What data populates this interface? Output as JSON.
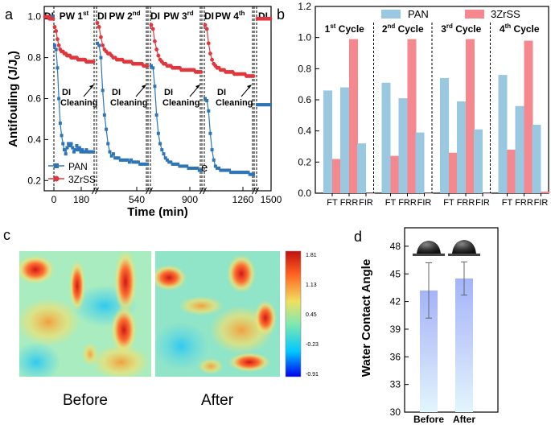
{
  "chart_data": [
    {
      "panel": "a",
      "type": "line",
      "ylabel_main": "Antifouling (J/J",
      "ylabel_sub": "0",
      "ylabel_close": ")",
      "xlabel": "Time (min)",
      "ylim": [
        0.15,
        1.05
      ],
      "yticks": [
        "0.2",
        "0.4",
        "0.6",
        "0.8",
        "1.0"
      ],
      "xticks": [
        "0",
        "180",
        "540",
        "900",
        "1260",
        "1500"
      ],
      "segment_labels": [
        "DI",
        "PW 1",
        "DI",
        "PW 2",
        "DI",
        "PW 3",
        "DI",
        "PW 4",
        "DI"
      ],
      "segment_sups": [
        "",
        "st",
        "",
        "nd",
        "",
        "rd",
        "",
        "th",
        ""
      ],
      "cleaning_label_1": "DI",
      "cleaning_label_2": "Cleaning",
      "stray_label": "e",
      "legend": [
        "PAN",
        "3ZrSS"
      ],
      "colors": {
        "PAN": "#2e75b6",
        "3ZrSS": "#e0363c"
      },
      "series": [
        {
          "name": "PAN",
          "segments": [
            {
              "x": [
                0,
                5,
                10,
                15,
                20,
                25,
                30,
                35,
                40,
                45,
                50,
                55,
                60,
                65
              ],
              "y": [
                1.0,
                1.0,
                1.0,
                1.0,
                1.0,
                1.0,
                1.0,
                1.0,
                1.0,
                1.0,
                1.0,
                1.0,
                1.0,
                1.0
              ]
            },
            {
              "x": [
                0,
                5,
                10,
                15,
                20,
                25,
                30,
                35,
                40,
                45,
                50,
                55,
                60,
                65,
                70,
                75,
                80,
                85,
                90,
                95,
                100,
                105,
                110,
                115,
                120,
                125,
                130,
                135,
                140
              ],
              "y": [
                0.86,
                0.84,
                0.75,
                0.6,
                0.48,
                0.42,
                0.38,
                0.35,
                0.33,
                0.36,
                0.38,
                0.37,
                0.38,
                0.36,
                0.34,
                0.35,
                0.37,
                0.35,
                0.36,
                0.34,
                0.35,
                0.34,
                0.34,
                0.35,
                0.34,
                0.34,
                0.34,
                0.34,
                0.34
              ]
            },
            {
              "x": [
                0,
                5,
                10,
                15,
                20,
                25,
                30,
                35,
                40,
                45,
                50,
                55,
                60,
                65,
                70,
                75,
                80,
                85,
                90,
                95,
                100,
                105,
                110,
                115,
                120,
                125,
                130,
                135,
                140
              ],
              "y": [
                0.87,
                0.86,
                0.8,
                0.64,
                0.52,
                0.45,
                0.38,
                0.34,
                0.32,
                0.33,
                0.31,
                0.31,
                0.31,
                0.3,
                0.3,
                0.3,
                0.3,
                0.3,
                0.29,
                0.3,
                0.29,
                0.29,
                0.29,
                0.29,
                0.28,
                0.28,
                0.28,
                0.28,
                0.28
              ]
            },
            {
              "x": [
                0,
                5,
                10,
                15,
                20,
                25,
                30,
                35,
                40,
                45,
                50,
                55,
                60,
                65,
                70,
                75,
                80,
                85,
                90,
                95,
                100,
                105,
                110,
                115,
                120,
                125,
                130,
                135,
                140
              ],
              "y": [
                0.76,
                0.75,
                0.66,
                0.52,
                0.43,
                0.38,
                0.35,
                0.33,
                0.31,
                0.3,
                0.29,
                0.29,
                0.28,
                0.28,
                0.28,
                0.28,
                0.27,
                0.27,
                0.27,
                0.27,
                0.27,
                0.26,
                0.26,
                0.26,
                0.26,
                0.26,
                0.26,
                0.25,
                0.25
              ]
            },
            {
              "x": [
                0,
                5,
                10,
                15,
                20,
                25,
                30,
                35,
                40,
                45,
                50,
                55,
                60,
                65,
                70,
                75,
                80,
                85,
                90,
                95,
                100,
                105,
                110,
                115,
                120,
                125,
                130,
                135,
                140
              ],
              "y": [
                0.6,
                0.59,
                0.54,
                0.43,
                0.35,
                0.3,
                0.27,
                0.26,
                0.26,
                0.25,
                0.25,
                0.25,
                0.25,
                0.25,
                0.25,
                0.24,
                0.24,
                0.24,
                0.24,
                0.24,
                0.24,
                0.24,
                0.24,
                0.24,
                0.24,
                0.24,
                0.23,
                0.23,
                0.23
              ]
            },
            {
              "x": [
                0,
                5,
                10,
                15,
                20,
                25,
                30,
                35
              ],
              "y": [
                0.57,
                0.57,
                0.57,
                0.57,
                0.57,
                0.57,
                0.57,
                0.57
              ]
            }
          ]
        },
        {
          "name": "3ZrSS",
          "segments": [
            {
              "x": [
                0,
                5,
                10,
                15,
                20,
                25,
                30,
                35,
                40,
                45,
                50,
                55,
                60,
                65
              ],
              "y": [
                1.0,
                1.0,
                1.0,
                1.0,
                1.0,
                1.0,
                1.0,
                0.99,
                0.99,
                0.99,
                0.99,
                0.99,
                0.99,
                0.99
              ]
            },
            {
              "x": [
                0,
                5,
                10,
                15,
                20,
                25,
                30,
                35,
                40,
                45,
                50,
                55,
                60,
                65,
                70,
                75,
                80,
                85,
                90,
                95,
                100,
                105,
                110,
                115,
                120,
                125,
                130,
                135,
                140
              ],
              "y": [
                0.95,
                0.93,
                0.89,
                0.86,
                0.84,
                0.83,
                0.83,
                0.82,
                0.82,
                0.81,
                0.81,
                0.81,
                0.8,
                0.8,
                0.8,
                0.8,
                0.8,
                0.79,
                0.79,
                0.79,
                0.79,
                0.79,
                0.79,
                0.78,
                0.78,
                0.78,
                0.78,
                0.78,
                0.78
              ]
            },
            {
              "x": [
                0,
                5,
                10,
                15,
                20,
                25,
                30,
                35,
                40,
                45,
                50,
                55,
                60,
                65,
                70,
                75,
                80,
                85,
                90,
                95,
                100,
                105,
                110,
                115,
                120,
                125,
                130,
                135,
                140
              ],
              "y": [
                0.97,
                0.95,
                0.9,
                0.86,
                0.84,
                0.83,
                0.82,
                0.82,
                0.81,
                0.8,
                0.8,
                0.79,
                0.79,
                0.79,
                0.79,
                0.78,
                0.78,
                0.78,
                0.78,
                0.78,
                0.77,
                0.77,
                0.77,
                0.77,
                0.77,
                0.77,
                0.76,
                0.76,
                0.76
              ]
            },
            {
              "x": [
                0,
                5,
                10,
                15,
                20,
                25,
                30,
                35,
                40,
                45,
                50,
                55,
                60,
                65,
                70,
                75,
                80,
                85,
                90,
                95,
                100,
                105,
                110,
                115,
                120,
                125,
                130,
                135,
                140
              ],
              "y": [
                0.96,
                0.94,
                0.88,
                0.84,
                0.81,
                0.79,
                0.78,
                0.77,
                0.77,
                0.76,
                0.76,
                0.76,
                0.75,
                0.75,
                0.75,
                0.75,
                0.75,
                0.74,
                0.74,
                0.74,
                0.74,
                0.74,
                0.74,
                0.74,
                0.74,
                0.73,
                0.73,
                0.73,
                0.73
              ]
            },
            {
              "x": [
                0,
                5,
                10,
                15,
                20,
                25,
                30,
                35,
                40,
                45,
                50,
                55,
                60,
                65,
                70,
                75,
                80,
                85,
                90,
                95,
                100,
                105,
                110,
                115,
                120,
                125,
                130,
                135,
                140
              ],
              "y": [
                0.96,
                0.94,
                0.87,
                0.82,
                0.79,
                0.77,
                0.76,
                0.75,
                0.75,
                0.74,
                0.74,
                0.74,
                0.73,
                0.73,
                0.73,
                0.73,
                0.73,
                0.72,
                0.72,
                0.72,
                0.72,
                0.72,
                0.72,
                0.72,
                0.71,
                0.71,
                0.71,
                0.71,
                0.71
              ]
            },
            {
              "x": [
                0,
                5,
                10,
                15,
                20,
                25,
                30,
                35
              ],
              "y": [
                0.99,
                0.99,
                0.99,
                0.99,
                0.99,
                0.99,
                0.99,
                0.99
              ]
            }
          ]
        }
      ]
    },
    {
      "panel": "b",
      "type": "bar",
      "ylim": [
        0,
        1.2
      ],
      "yticks": [
        "0.0",
        "0.2",
        "0.4",
        "0.6",
        "0.8",
        "1.0",
        "1.2"
      ],
      "categories": [
        "FT",
        "FRR",
        "FIR"
      ],
      "groups": [
        "1",
        "2",
        "3",
        "4"
      ],
      "group_sups": [
        "st",
        "nd",
        "rd",
        "th"
      ],
      "group_word": "Cycle",
      "legend": [
        "PAN",
        "3ZrSS"
      ],
      "colors": {
        "PAN": "#9ac8e0",
        "3ZrSS": "#f4888e"
      },
      "series": [
        {
          "name": "PAN",
          "values": [
            [
              0.66,
              0.68,
              0.32
            ],
            [
              0.71,
              0.61,
              0.39
            ],
            [
              0.74,
              0.59,
              0.41
            ],
            [
              0.76,
              0.56,
              0.44
            ]
          ]
        },
        {
          "name": "3ZrSS",
          "values": [
            [
              0.22,
              0.99,
              0.0
            ],
            [
              0.24,
              0.99,
              0.0
            ],
            [
              0.26,
              0.99,
              0.0
            ],
            [
              0.28,
              0.98,
              0.01
            ]
          ]
        }
      ]
    },
    {
      "panel": "c",
      "type": "heatmap",
      "labels": [
        "Before",
        "After"
      ],
      "colorbar_ticks": [
        "1.81",
        "1.13",
        "0.45",
        "-0.23",
        "-0.91"
      ],
      "colorbar_range": [
        -0.91,
        1.81
      ],
      "colorbar_colors": [
        "#0000f0",
        "#00c8ff",
        "#80e8b0",
        "#f0e060",
        "#ff6020",
        "#c01010"
      ]
    },
    {
      "panel": "d",
      "type": "bar",
      "ylabel": "Water Contact Angle",
      "ylim": [
        30,
        50
      ],
      "yticks": [
        "30",
        "33",
        "36",
        "39",
        "42",
        "45",
        "48"
      ],
      "categories": [
        "Before",
        "After"
      ],
      "values": [
        43.2,
        44.5
      ],
      "errors": [
        3.0,
        1.8
      ],
      "colors": {
        "bar_top": "#a4b4f8",
        "bar_bottom": "#e0f4fc"
      }
    }
  ],
  "panel_labels": {
    "a": "a",
    "b": "b",
    "c": "c",
    "d": "d"
  }
}
